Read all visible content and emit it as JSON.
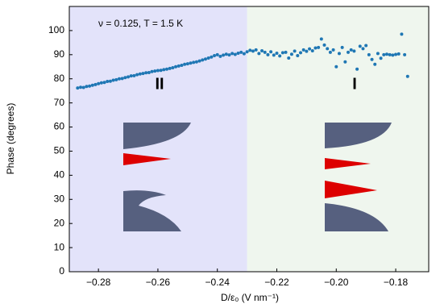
{
  "chart_data": {
    "type": "scatter",
    "annotation": "ν = 0.125, T = 1.5 K",
    "region_labels": [
      "II",
      "I"
    ],
    "x_label": "D/ε₀ (V nm⁻¹)",
    "y_label": "Phase (degrees)",
    "color": "#1f77b4",
    "regions": [
      {
        "from": -0.2898,
        "to": -0.23,
        "color": "#e3e3fa"
      },
      {
        "from": -0.23,
        "to": -0.1689,
        "color": "#eff6ee"
      }
    ],
    "xlim": [
      -0.2898,
      -0.1689
    ],
    "ylim": [
      0,
      110
    ],
    "xticks": [
      {
        "value": -0.28,
        "label": "−0.28"
      },
      {
        "value": -0.26,
        "label": "−0.26"
      },
      {
        "value": -0.24,
        "label": "−0.24"
      },
      {
        "value": -0.22,
        "label": "−0.22"
      },
      {
        "value": -0.2,
        "label": "−0.20"
      },
      {
        "value": -0.18,
        "label": "−0.18"
      }
    ],
    "yticks": [
      0,
      10,
      20,
      30,
      40,
      50,
      60,
      70,
      80,
      90,
      100
    ],
    "x": [
      -0.287,
      -0.286,
      -0.285,
      -0.284,
      -0.283,
      -0.282,
      -0.281,
      -0.28,
      -0.279,
      -0.278,
      -0.277,
      -0.276,
      -0.275,
      -0.274,
      -0.273,
      -0.272,
      -0.271,
      -0.27,
      -0.269,
      -0.268,
      -0.267,
      -0.266,
      -0.265,
      -0.264,
      -0.263,
      -0.262,
      -0.261,
      -0.26,
      -0.259,
      -0.258,
      -0.257,
      -0.256,
      -0.255,
      -0.254,
      -0.253,
      -0.252,
      -0.251,
      -0.25,
      -0.249,
      -0.248,
      -0.247,
      -0.246,
      -0.245,
      -0.244,
      -0.243,
      -0.242,
      -0.241,
      -0.24,
      -0.239,
      -0.238,
      -0.237,
      -0.236,
      -0.235,
      -0.234,
      -0.233,
      -0.232,
      -0.231,
      -0.23,
      -0.229,
      -0.228,
      -0.227,
      -0.226,
      -0.225,
      -0.224,
      -0.223,
      -0.222,
      -0.221,
      -0.22,
      -0.219,
      -0.218,
      -0.217,
      -0.216,
      -0.215,
      -0.214,
      -0.213,
      -0.212,
      -0.211,
      -0.21,
      -0.209,
      -0.208,
      -0.207,
      -0.206,
      -0.205,
      -0.204,
      -0.203,
      -0.202,
      -0.201,
      -0.2,
      -0.199,
      -0.198,
      -0.197,
      -0.196,
      -0.195,
      -0.194,
      -0.193,
      -0.192,
      -0.191,
      -0.19,
      -0.189,
      -0.188,
      -0.187,
      -0.186,
      -0.185,
      -0.184,
      -0.183,
      -0.182,
      -0.181,
      -0.18,
      -0.179,
      -0.178,
      -0.177,
      -0.176
    ],
    "values": [
      76.2,
      76.5,
      76.4,
      76.8,
      77.0,
      77.3,
      77.6,
      78.0,
      78.3,
      78.5,
      78.9,
      79.0,
      79.4,
      79.6,
      80.0,
      80.1,
      80.5,
      80.8,
      81.2,
      81.3,
      81.7,
      82.0,
      82.2,
      82.5,
      82.6,
      83.0,
      83.2,
      83.4,
      83.5,
      83.8,
      84.0,
      84.3,
      84.6,
      85.0,
      85.3,
      85.6,
      86.0,
      86.2,
      86.5,
      86.8,
      87.0,
      87.4,
      87.8,
      88.2,
      88.6,
      89.0,
      89.6,
      90.0,
      89.3,
      89.8,
      90.2,
      89.9,
      90.5,
      90.1,
      90.6,
      91.0,
      90.4,
      91.2,
      91.8,
      91.5,
      92.0,
      90.5,
      91.6,
      91.0,
      90.0,
      91.2,
      89.8,
      90.6,
      89.5,
      90.8,
      91.0,
      88.6,
      90.2,
      91.5,
      89.6,
      90.8,
      92.0,
      91.4,
      92.4,
      91.6,
      92.8,
      93.0,
      96.5,
      94.0,
      92.5,
      91.0,
      92.0,
      85.0,
      90.5,
      93.0,
      87.0,
      91.0,
      92.0,
      91.5,
      84.0,
      93.5,
      92.5,
      93.8,
      90.0,
      88.0,
      86.0,
      90.5,
      88.5,
      90.0,
      90.2,
      90.0,
      89.8,
      90.1,
      90.3,
      98.5,
      90.0,
      81.0
    ]
  }
}
